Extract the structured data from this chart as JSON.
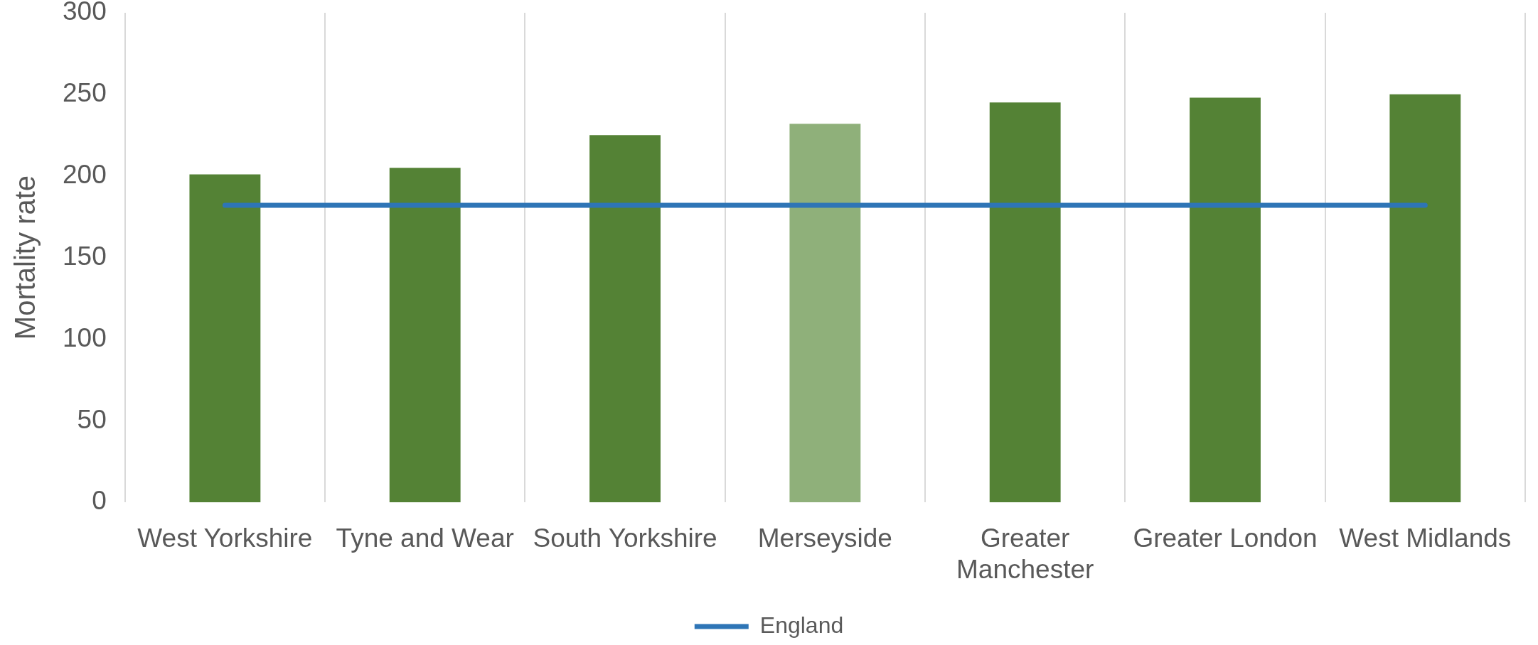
{
  "chart_data": {
    "type": "bar",
    "ylabel": "Mortality rate",
    "categories": [
      "West Yorkshire",
      "Tyne and Wear",
      "South Yorkshire",
      "Merseyside",
      "Greater Manchester",
      "Greater London",
      "West Midlands"
    ],
    "series": [
      {
        "colors": [
          "#548235",
          "#548235",
          "#548235",
          "#8fb07a",
          "#548235",
          "#548235",
          "#548235"
        ],
        "values": [
          201,
          205,
          225,
          232,
          245,
          248,
          250
        ]
      },
      {
        "type": "line",
        "name": "England",
        "color": "#2e75b6",
        "values": [
          182,
          182,
          182,
          182,
          182,
          182,
          182
        ]
      }
    ],
    "ylim": [
      0,
      300
    ],
    "yticks": [
      0,
      50,
      100,
      150,
      200,
      250,
      300
    ],
    "grid": "x",
    "legend": "bottom",
    "marker": "none"
  }
}
